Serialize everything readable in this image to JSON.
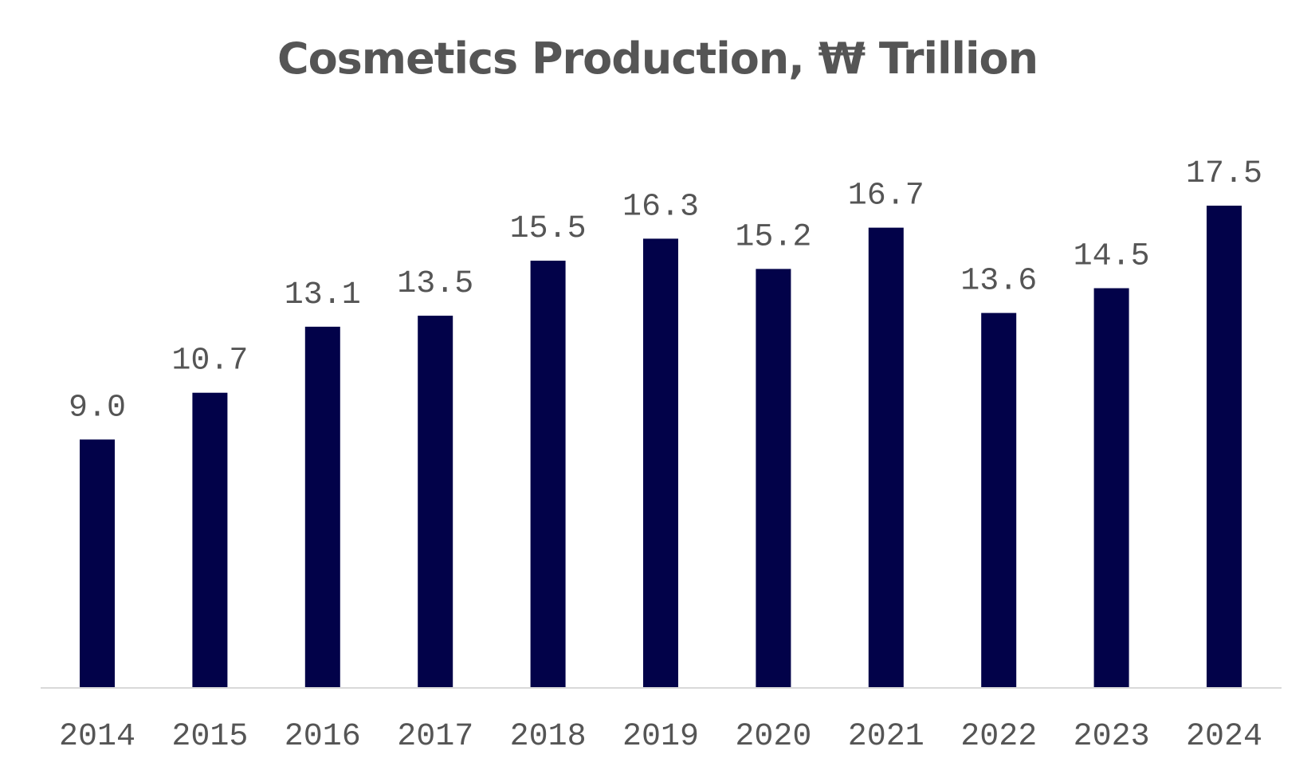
{
  "chart_data": {
    "type": "bar",
    "title": "Cosmetics Production, ₩ Trillion",
    "categories": [
      "2014",
      "2015",
      "2016",
      "2017",
      "2018",
      "2019",
      "2020",
      "2021",
      "2022",
      "2023",
      "2024"
    ],
    "values": [
      9.0,
      10.7,
      13.1,
      13.5,
      15.5,
      16.3,
      15.2,
      16.7,
      13.6,
      14.5,
      17.5
    ],
    "value_labels": [
      "9.0",
      "10.7",
      "13.1",
      "13.5",
      "15.5",
      "16.3",
      "15.2",
      "16.7",
      "13.6",
      "14.5",
      "17.5"
    ],
    "xlabel": "",
    "ylabel": "",
    "ylim": [
      0,
      17.5
    ],
    "grid": false,
    "bar_color": "#020249",
    "axis_color": "#d9d9d9",
    "text_color": "#555555"
  }
}
